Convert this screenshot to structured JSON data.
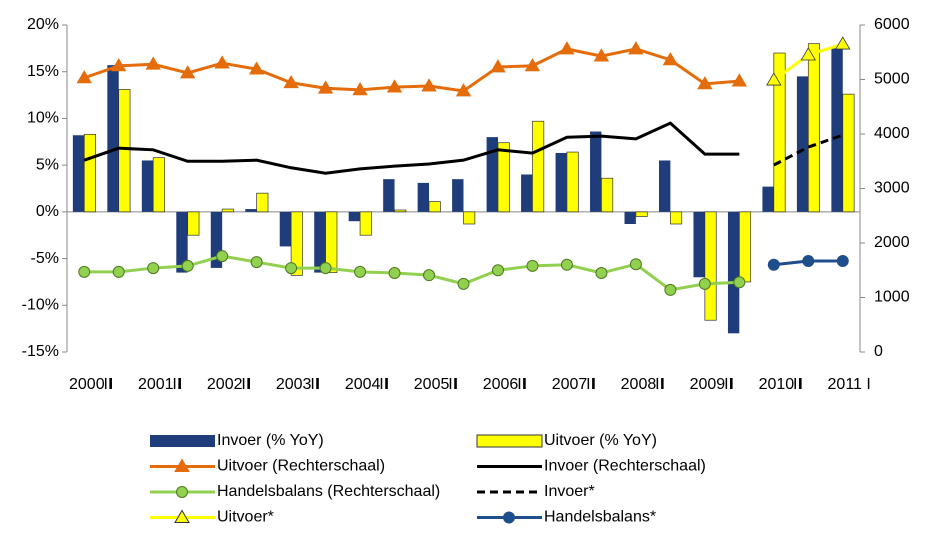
{
  "chart_data": {
    "type": "bar-line",
    "categories": [
      "2000 I",
      "II",
      "2001 I",
      "II",
      "2002 I",
      "II",
      "2003 I",
      "II",
      "2004 I",
      "II",
      "2005 I",
      "II",
      "2006 I",
      "II",
      "2007 I",
      "II",
      "2008 I",
      "II",
      "2009 I",
      "II",
      "2010 I",
      "II",
      "2011 I"
    ],
    "ylim": [
      -15,
      20
    ],
    "yticks": [
      {
        "value": -15,
        "label": "-15%"
      },
      {
        "value": -10,
        "label": "-10%"
      },
      {
        "value": -5,
        "label": "-5%"
      },
      {
        "value": 0,
        "label": "0%"
      },
      {
        "value": 5,
        "label": "5%"
      },
      {
        "value": 10,
        "label": "10%"
      },
      {
        "value": 15,
        "label": "15%"
      },
      {
        "value": 20,
        "label": "20%"
      }
    ],
    "y2lim": [
      0,
      6000
    ],
    "y2ticks": [
      0,
      1000,
      2000,
      3000,
      4000,
      5000,
      6000
    ],
    "series": [
      {
        "name": "Invoer (% YoY)",
        "kind": "bar",
        "color": "#1f3d7a",
        "axis": "y",
        "values": [
          8.2,
          15.7,
          5.5,
          -6.5,
          -6,
          0.3,
          -3.7,
          -6.5,
          -1,
          3.5,
          3.1,
          3.5,
          8,
          4,
          6.3,
          8.6,
          -1.3,
          5.5,
          -7,
          -13,
          2.7,
          14.5,
          17.5
        ]
      },
      {
        "name": "Uitvoer (% YoY)",
        "kind": "bar",
        "color": "#ffff00",
        "axis": "y",
        "values": [
          8.3,
          13.1,
          5.8,
          -2.5,
          0.3,
          2,
          -6.8,
          -6.5,
          -2.5,
          0.2,
          1.1,
          -1.3,
          7.4,
          9.7,
          6.4,
          3.6,
          -0.5,
          -1.3,
          -11.6,
          -7.5,
          17,
          18,
          12.6
        ]
      },
      {
        "name": "Uitvoer (Rechterschaal)",
        "kind": "line",
        "color": "#e46c0a",
        "marker": "triangle",
        "axis": "y2",
        "values": [
          5030,
          5250,
          5280,
          5120,
          5300,
          5190,
          4940,
          4840,
          4810,
          4860,
          4880,
          4790,
          5230,
          5250,
          5560,
          5430,
          5560,
          5360,
          4920,
          4970,
          null,
          null,
          null
        ]
      },
      {
        "name": "Invoer (Rechterschaal)",
        "kind": "line",
        "color": "#000000",
        "marker": "none",
        "axis": "y2",
        "values": [
          3520,
          3740,
          3710,
          3500,
          3500,
          3520,
          3380,
          3280,
          3360,
          3410,
          3450,
          3520,
          3710,
          3650,
          3940,
          3960,
          3910,
          4200,
          3630,
          3630,
          null,
          null,
          null
        ]
      },
      {
        "name": "Handelsbalans (Rechterschaal)",
        "kind": "line",
        "color": "#92d050",
        "marker": "circle",
        "axis": "y2",
        "values": [
          1470,
          1470,
          1540,
          1580,
          1760,
          1650,
          1540,
          1540,
          1470,
          1450,
          1410,
          1250,
          1500,
          1580,
          1600,
          1450,
          1610,
          1140,
          1250,
          1280,
          null,
          null,
          null
        ]
      },
      {
        "name": "Invoer*",
        "kind": "line",
        "color": "#000000",
        "marker": "none",
        "dash": true,
        "axis": "y2",
        "values": [
          null,
          null,
          null,
          null,
          null,
          null,
          null,
          null,
          null,
          null,
          null,
          null,
          null,
          null,
          null,
          null,
          null,
          null,
          null,
          null,
          3430,
          3760,
          3980
        ]
      },
      {
        "name": "Uitvoer*",
        "kind": "line",
        "color": "#ffff00",
        "marker": "triangle",
        "axis": "y2",
        "values": [
          null,
          null,
          null,
          null,
          null,
          null,
          null,
          null,
          null,
          null,
          null,
          null,
          null,
          null,
          null,
          null,
          null,
          null,
          null,
          null,
          4990,
          5450,
          5650
        ]
      },
      {
        "name": "Handelsbalans*",
        "kind": "line",
        "color": "#1f4e8c",
        "marker": "circle",
        "axis": "y2",
        "values": [
          null,
          null,
          null,
          null,
          null,
          null,
          null,
          null,
          null,
          null,
          null,
          null,
          null,
          null,
          null,
          null,
          null,
          null,
          null,
          null,
          1600,
          1670,
          1670
        ]
      }
    ]
  }
}
